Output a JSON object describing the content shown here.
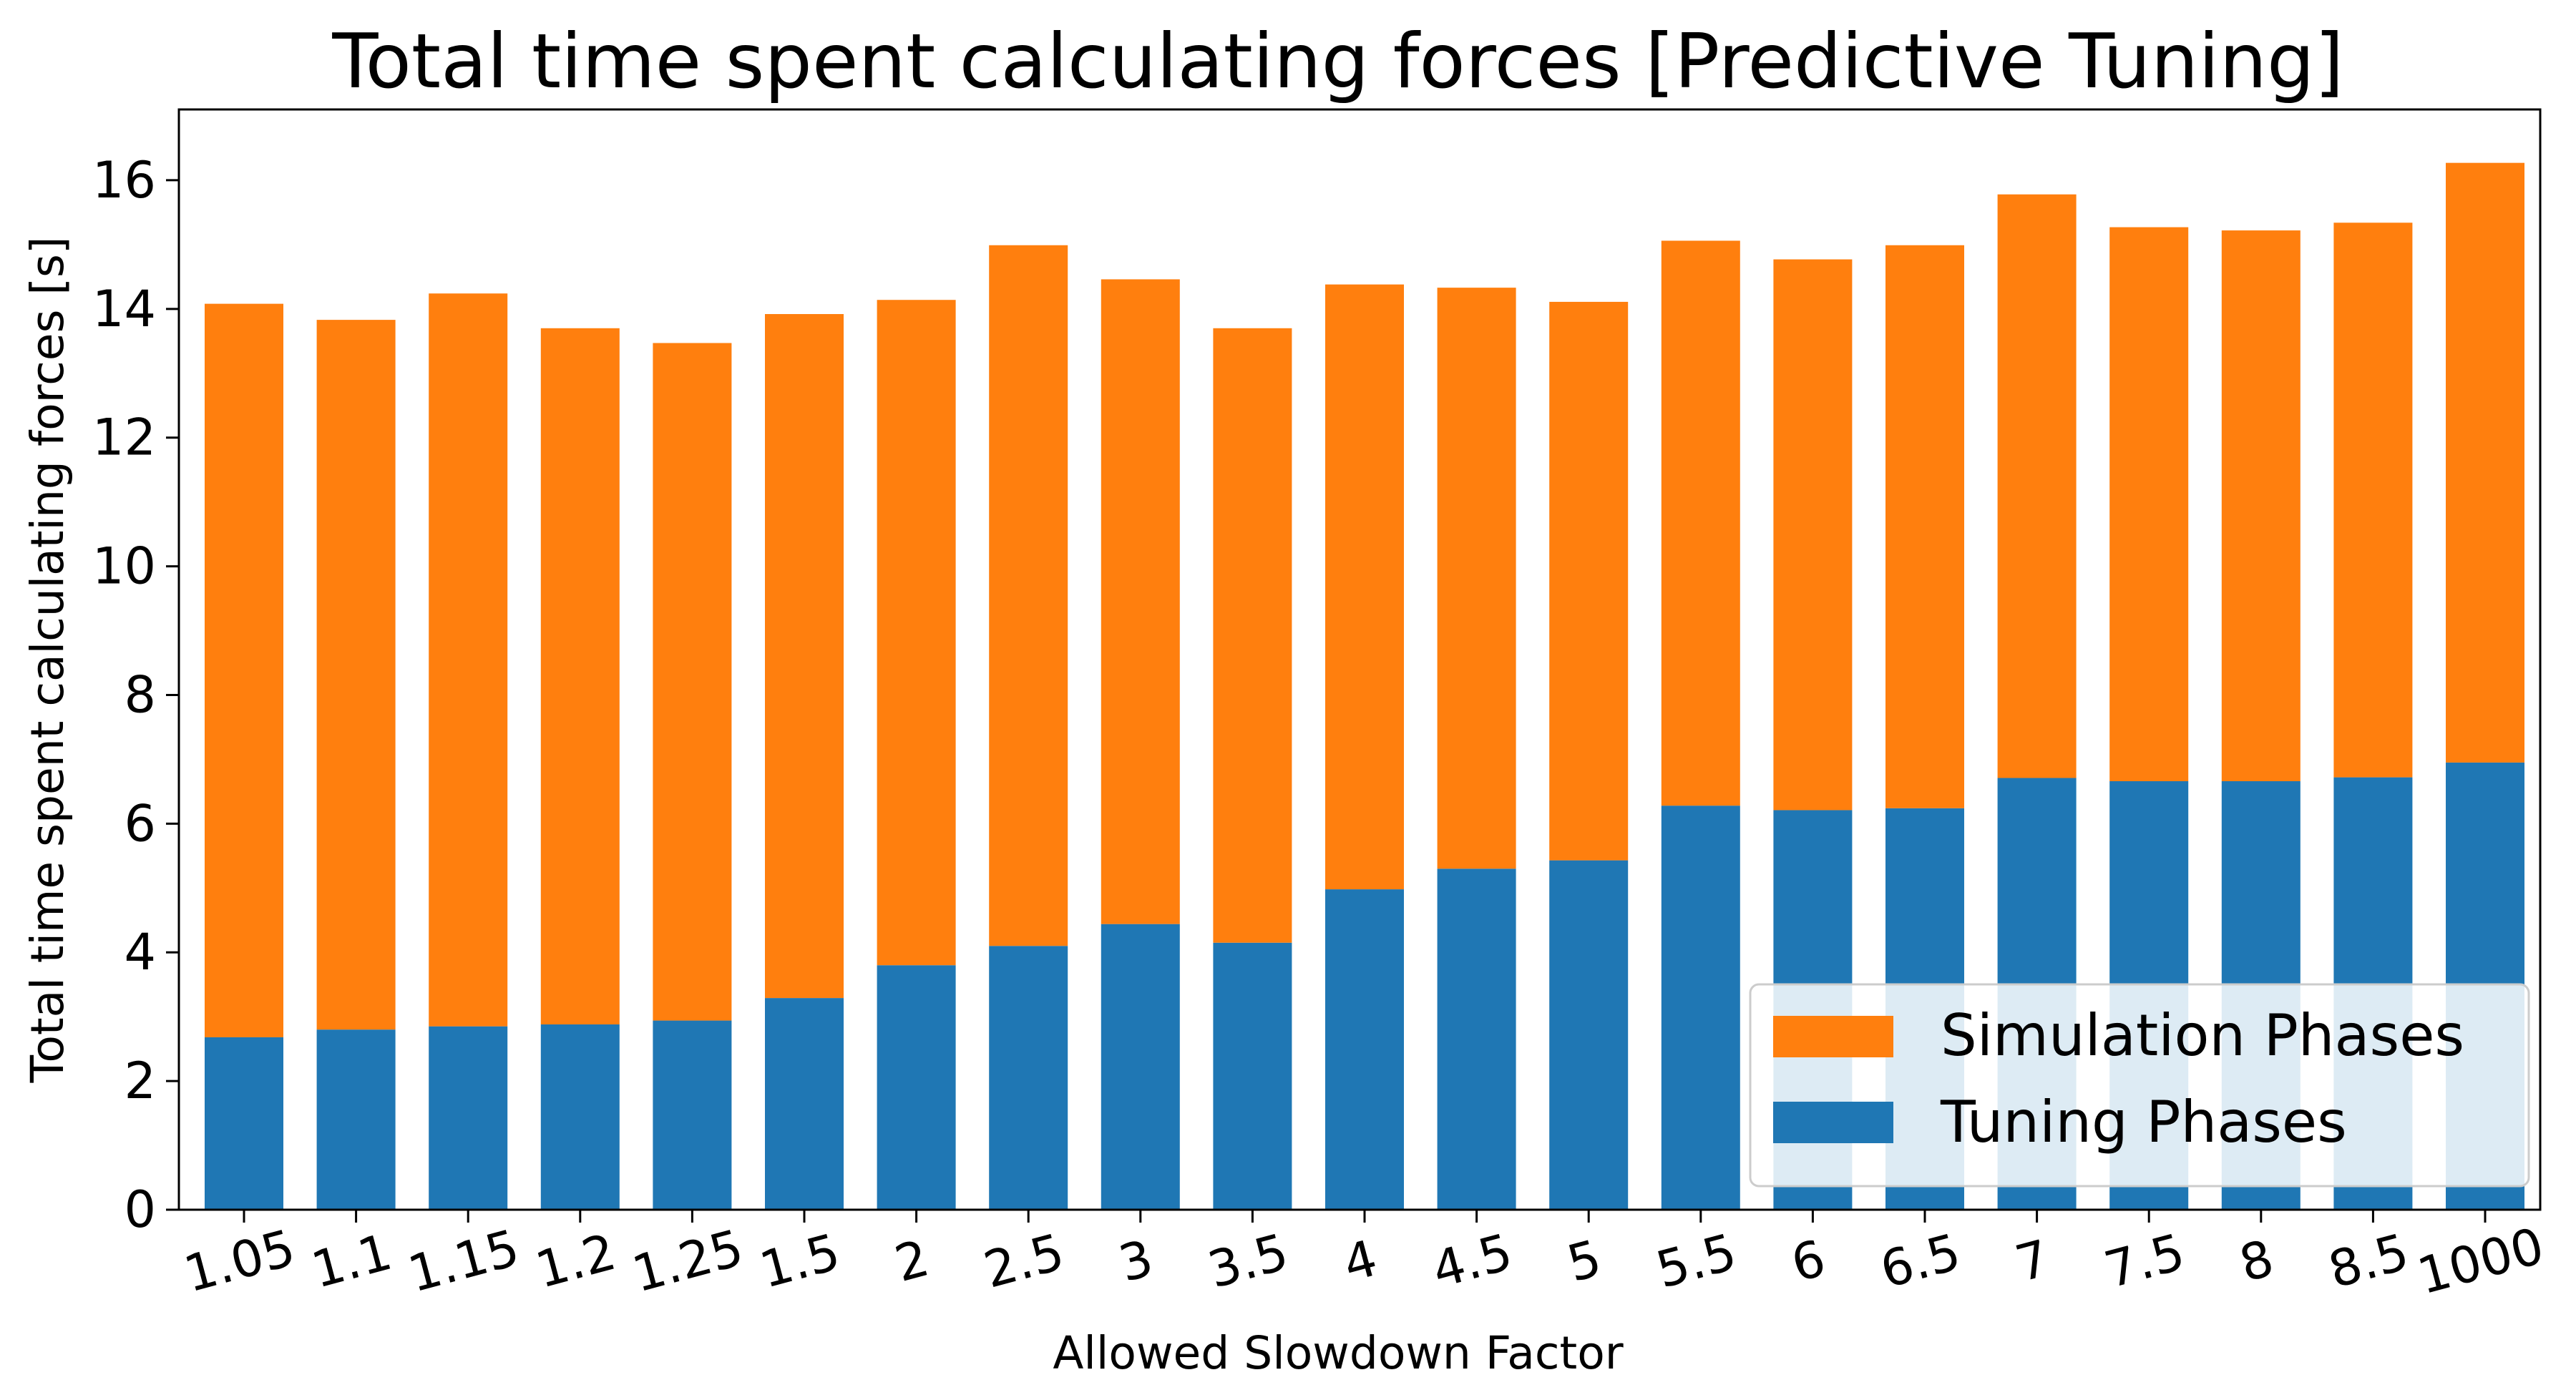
{
  "chart_data": {
    "type": "bar",
    "stacked": true,
    "title": "Total time spent calculating forces [Predictive Tuning]",
    "xlabel": "Allowed Slowdown Factor",
    "ylabel": "Total time spent calculating forces [s]",
    "categories": [
      "1.05",
      "1.1",
      "1.15",
      "1.2",
      "1.25",
      "1.5",
      "2",
      "2.5",
      "3",
      "3.5",
      "4",
      "4.5",
      "5",
      "5.5",
      "6",
      "6.5",
      "7",
      "7.5",
      "8",
      "8.5",
      "1000"
    ],
    "series": [
      {
        "name": "Tuning Phases",
        "color": "#1f77b4",
        "values": [
          2.68,
          2.8,
          2.85,
          2.88,
          2.94,
          3.29,
          3.8,
          4.1,
          4.44,
          4.15,
          4.98,
          5.3,
          5.43,
          6.28,
          6.21,
          6.24,
          6.71,
          6.66,
          6.66,
          6.72,
          6.95
        ]
      },
      {
        "name": "Simulation Phases",
        "color": "#ff7f0e",
        "values": [
          11.4,
          11.03,
          11.39,
          10.82,
          10.53,
          10.63,
          10.34,
          10.89,
          10.02,
          9.55,
          9.4,
          9.03,
          8.68,
          8.78,
          8.56,
          8.75,
          9.07,
          8.61,
          8.56,
          8.62,
          9.32
        ]
      }
    ],
    "ylim": [
      0,
      17.1
    ],
    "yticks": [
      0,
      2,
      4,
      6,
      8,
      10,
      12,
      14,
      16
    ],
    "grid": false,
    "legend_position": "lower right",
    "legend_order": [
      "Simulation Phases",
      "Tuning Phases"
    ]
  }
}
